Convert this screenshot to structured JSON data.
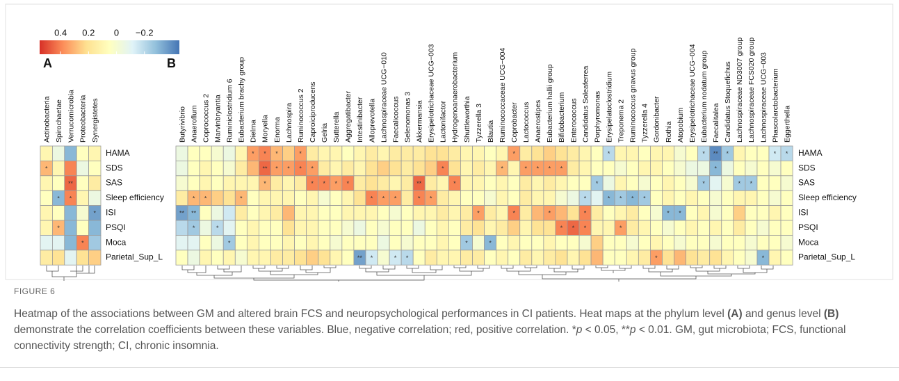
{
  "chart_data": [
    {
      "type": "heatmap",
      "columns": [
        "Actinobacteria",
        "Spirochaetae",
        "Verrucomicrobia",
        "Proteobacteria",
        "Synergistetes"
      ],
      "rows": [
        "HAMA",
        "SDS",
        "SAS",
        "Sleep efficiency",
        "ISI",
        "PSQI",
        "Moca",
        "Parietal_Sup_L"
      ],
      "values": [
        [
          0.1,
          -0.05,
          -0.3,
          0.05,
          0.1
        ],
        [
          0.3,
          0.1,
          0.4,
          -0.05,
          0.05
        ],
        [
          0.1,
          0.05,
          0.45,
          0.05,
          0.15
        ],
        [
          0.05,
          -0.3,
          0.4,
          0.1,
          -0.05
        ],
        [
          0.1,
          0.05,
          -0.3,
          0,
          -0.35
        ],
        [
          0.1,
          0.3,
          -0.3,
          0.05,
          -0.3
        ],
        [
          -0.1,
          -0.1,
          -0.3,
          0.4,
          -0.25
        ],
        [
          0.15,
          0.2,
          -0.1,
          0.2,
          0.25
        ]
      ],
      "stars": [
        [
          1,
          0,
          "*"
        ],
        [
          2,
          2,
          "**"
        ],
        [
          3,
          1,
          "*"
        ],
        [
          3,
          2,
          "*"
        ],
        [
          4,
          4,
          "*"
        ],
        [
          5,
          1,
          "*"
        ],
        [
          6,
          3,
          "*"
        ]
      ]
    },
    {
      "type": "heatmap",
      "columns": [
        "Butyrivibrio",
        "Anaeroflum",
        "Coprococcus 2",
        "Marvinbryantia",
        "Ruminiclostridium 6",
        "Eubacterium brachy group",
        "Dielma",
        "Moryella",
        "Enorma",
        "Lachnospira",
        "Ruminococcus 2",
        "Caproiciproducens",
        "Gelria",
        "Sutterella",
        "Aggregatibacter",
        "Intestinibacter",
        "Alloprevotella",
        "Lachnospiraceae UCG−010",
        "Faecalicoccus",
        "Selenomonas 3",
        "Akkermansia",
        "Erysipelotrichaceae UCG−003",
        "Lactonifactor",
        "Hydrogenoanaerobacterium",
        "Shuttleworthia",
        "Tyzzerella 3",
        "Blautia",
        "Ruminococcaceae UCG−004",
        "Coprobacter",
        "Lactococcus",
        "Anaerostipes",
        "Eubacterium hallii group",
        "Bifidobacterium",
        "Enterococcus",
        "Candidatus Soleaferrea",
        "Porphyromonas",
        "Erysipelatoclostridium",
        "Treponema 2",
        "Ruminococcus gnavus group",
        "Tyzzerella 4",
        "Gordonibacter",
        "Rothia",
        "Atopobium",
        "Erysipelotrichaceae UCG−004",
        "Eubacterium nodatum group",
        "Faecalitalea",
        "Candidatus Stoquefichus",
        "Lachnospiraceae ND3007 group",
        "Lachnospiraceae FCS020 group",
        "Lachnospiraceae UCG−003",
        "Phascolarctobacterium",
        "Eggerthella"
      ],
      "rows": [
        "HAMA",
        "SDS",
        "SAS",
        "Sleep efficiency",
        "ISI",
        "PSQI",
        "Moca",
        "Parietal_Sup_L"
      ],
      "values": [
        [
          -0.05,
          0.05,
          0.05,
          0,
          -0.05,
          0.1,
          0.35,
          0.4,
          0.3,
          0.25,
          0.35,
          0.15,
          0.1,
          0.1,
          0.05,
          0.1,
          0.15,
          0.1,
          0.15,
          0.15,
          0.15,
          0.2,
          0.2,
          0.15,
          0.1,
          0.1,
          0.05,
          0.1,
          0.35,
          0.15,
          0.2,
          0.25,
          0.2,
          0.15,
          0.1,
          0.05,
          -0.2,
          0.1,
          0.1,
          0.05,
          0.1,
          0.1,
          0,
          0.05,
          -0.2,
          -0.4,
          -0.25,
          0.1,
          0.05,
          0.05,
          -0.15,
          -0.2
        ],
        [
          -0.05,
          0.05,
          0.1,
          0.05,
          0,
          0.15,
          0.3,
          0.45,
          0.35,
          0.35,
          0.4,
          0.35,
          0.15,
          0.1,
          0.15,
          0.1,
          0.2,
          0.25,
          0.2,
          0.15,
          0.2,
          0.25,
          0.4,
          0.2,
          0.1,
          0.15,
          0.1,
          0.3,
          0.1,
          0.35,
          0.35,
          0.35,
          0.35,
          0.15,
          0.1,
          0.05,
          0.05,
          0,
          0.05,
          0.1,
          0.1,
          0.05,
          0,
          -0.05,
          -0.05,
          -0.3,
          -0.05,
          0.05,
          0,
          0.05,
          0,
          0.05
        ],
        [
          0,
          0.05,
          0.1,
          0.05,
          0.1,
          0.1,
          0.1,
          0.3,
          0.15,
          0.1,
          0.15,
          0.4,
          0.4,
          0.35,
          0.4,
          0.15,
          0.2,
          0.15,
          0.1,
          0.15,
          0.45,
          0.15,
          0.1,
          0.4,
          0.1,
          0.1,
          0.05,
          0.1,
          0.05,
          0.15,
          0.1,
          0.15,
          0.1,
          0.05,
          0.05,
          -0.25,
          -0.05,
          0.1,
          0.05,
          0,
          0.05,
          0.1,
          0.05,
          0,
          -0.25,
          -0.1,
          0,
          -0.25,
          -0.25,
          0.05,
          0.05,
          0
        ],
        [
          0.15,
          0.3,
          0.3,
          0.25,
          0.2,
          0.3,
          0.05,
          0.1,
          0.1,
          0.1,
          0.05,
          0.1,
          0,
          0.05,
          0.1,
          0.2,
          0.4,
          0.35,
          0.35,
          0.15,
          0.4,
          0.35,
          0.15,
          0.1,
          0.05,
          0.05,
          0,
          0.1,
          0.05,
          0.15,
          0.1,
          0.1,
          0,
          -0.05,
          -0.2,
          -0.1,
          -0.3,
          -0.25,
          -0.3,
          -0.25,
          0.05,
          0.1,
          0.05,
          0.1,
          0.05,
          0,
          0.05,
          0.1,
          0.1,
          0.05,
          0,
          0.05
        ],
        [
          -0.35,
          -0.3,
          0.05,
          -0.05,
          -0.15,
          0.15,
          0.05,
          0.1,
          0.15,
          0.3,
          0.1,
          0.1,
          0.05,
          0.05,
          0.1,
          0.1,
          0.1,
          0.05,
          0,
          0.05,
          0.1,
          0.1,
          0.15,
          0.1,
          0.15,
          0.35,
          0.15,
          0.1,
          0.4,
          0.15,
          0.3,
          0.35,
          0.3,
          0.2,
          0.4,
          0.15,
          0.05,
          0.1,
          0.15,
          0.05,
          0,
          -0.3,
          -0.3,
          0.05,
          0.1,
          0,
          0.05,
          0.25,
          0.05,
          0.05,
          0.1,
          0.05
        ],
        [
          -0.2,
          -0.25,
          -0.05,
          -0.2,
          -0.1,
          0.05,
          0.1,
          0.05,
          0.05,
          0.2,
          0.1,
          0.1,
          0.05,
          0.05,
          0,
          -0.05,
          0.05,
          0,
          0.05,
          0.05,
          -0.05,
          0.05,
          0.1,
          0.05,
          0.15,
          0.2,
          0.1,
          0.15,
          0.25,
          0.1,
          0.2,
          0.2,
          0.4,
          0.45,
          0.4,
          0.1,
          0.1,
          0.35,
          0.15,
          0.1,
          0.05,
          0,
          0.05,
          0.1,
          0.05,
          0.1,
          0.05,
          0.15,
          0.05,
          0,
          0.05,
          0.05
        ],
        [
          -0.1,
          -0.1,
          0.05,
          -0.05,
          -0.25,
          0.05,
          0.1,
          0.05,
          0.05,
          0.1,
          0.05,
          0.1,
          0.05,
          0,
          0.05,
          0.05,
          0.05,
          -0.05,
          0.05,
          0,
          0.05,
          0.05,
          0.1,
          0.05,
          -0.25,
          0,
          -0.3,
          0.05,
          0.1,
          0.05,
          0.05,
          0.1,
          0.05,
          0.05,
          0,
          0.25,
          0.05,
          0.05,
          0,
          0.05,
          0.1,
          0.05,
          0,
          0.05,
          0.05,
          0,
          0.05,
          0.05,
          0,
          0.05,
          0.05,
          0
        ],
        [
          0.05,
          -0.05,
          0.1,
          0.05,
          0.1,
          0,
          0.1,
          0.1,
          0.15,
          0.15,
          0.2,
          0.25,
          0.2,
          0.1,
          0.05,
          -0.35,
          -0.15,
          0,
          -0.15,
          -0.2,
          0.05,
          0.15,
          0.1,
          0.1,
          0.15,
          0.15,
          0.05,
          0.1,
          0.05,
          0.15,
          0.1,
          0.15,
          0.2,
          0.1,
          0.2,
          0.3,
          0.05,
          0.05,
          0.1,
          0.15,
          0.35,
          0.2,
          0.3,
          0.2,
          0.15,
          0.2,
          0.1,
          0.05,
          0,
          -0.3,
          0.1,
          0.05
        ]
      ],
      "stars": [
        [
          0,
          6,
          "*"
        ],
        [
          0,
          7,
          "*"
        ],
        [
          0,
          8,
          "*"
        ],
        [
          0,
          10,
          "*"
        ],
        [
          0,
          28,
          "*"
        ],
        [
          0,
          36,
          "*"
        ],
        [
          0,
          44,
          "*"
        ],
        [
          0,
          45,
          "**"
        ],
        [
          0,
          46,
          "*"
        ],
        [
          0,
          50,
          "*"
        ],
        [
          0,
          51,
          "*"
        ],
        [
          1,
          7,
          "**"
        ],
        [
          1,
          8,
          "*"
        ],
        [
          1,
          9,
          "*"
        ],
        [
          1,
          10,
          "*"
        ],
        [
          1,
          11,
          "*"
        ],
        [
          1,
          22,
          "*"
        ],
        [
          1,
          27,
          "*"
        ],
        [
          1,
          29,
          "*"
        ],
        [
          1,
          30,
          "*"
        ],
        [
          1,
          31,
          "*"
        ],
        [
          1,
          32,
          "*"
        ],
        [
          1,
          45,
          "*"
        ],
        [
          2,
          7,
          "*"
        ],
        [
          2,
          11,
          "*"
        ],
        [
          2,
          12,
          "*"
        ],
        [
          2,
          13,
          "*"
        ],
        [
          2,
          14,
          "*"
        ],
        [
          2,
          20,
          "**"
        ],
        [
          2,
          23,
          "*"
        ],
        [
          2,
          35,
          "*"
        ],
        [
          2,
          44,
          "*"
        ],
        [
          2,
          47,
          "*"
        ],
        [
          2,
          48,
          "*"
        ],
        [
          3,
          1,
          "*"
        ],
        [
          3,
          2,
          "*"
        ],
        [
          3,
          5,
          "*"
        ],
        [
          3,
          16,
          "*"
        ],
        [
          3,
          17,
          "*"
        ],
        [
          3,
          18,
          "*"
        ],
        [
          3,
          20,
          "*"
        ],
        [
          3,
          21,
          "*"
        ],
        [
          3,
          34,
          "*"
        ],
        [
          3,
          36,
          "*"
        ],
        [
          3,
          37,
          "*"
        ],
        [
          3,
          38,
          "*"
        ],
        [
          3,
          39,
          "*"
        ],
        [
          4,
          0,
          "**"
        ],
        [
          4,
          1,
          "**"
        ],
        [
          4,
          25,
          "*"
        ],
        [
          4,
          28,
          "*"
        ],
        [
          4,
          31,
          "*"
        ],
        [
          4,
          34,
          "*"
        ],
        [
          4,
          41,
          "*"
        ],
        [
          4,
          42,
          "*"
        ],
        [
          5,
          1,
          "*"
        ],
        [
          5,
          3,
          "*"
        ],
        [
          5,
          32,
          "*"
        ],
        [
          5,
          33,
          "*"
        ],
        [
          5,
          34,
          "*"
        ],
        [
          5,
          37,
          "*"
        ],
        [
          6,
          4,
          "*"
        ],
        [
          6,
          24,
          "*"
        ],
        [
          6,
          26,
          "*"
        ],
        [
          7,
          15,
          "**"
        ],
        [
          7,
          16,
          "*"
        ],
        [
          7,
          18,
          "*"
        ],
        [
          7,
          19,
          "*"
        ],
        [
          7,
          40,
          "*"
        ],
        [
          7,
          49,
          "*"
        ]
      ]
    }
  ],
  "colorbar": {
    "lim": [
      0.55,
      -0.45
    ],
    "ticks": [
      0.4,
      0.2,
      0,
      {
        "value": -0.2,
        "label": "−0.2"
      }
    ],
    "colors": [
      "#d73027",
      "#fc8d59",
      "#fee090",
      "#ffffbf",
      "#e0f3f8",
      "#91bfdb",
      "#4575b4"
    ]
  },
  "panel_labels": [
    "A",
    "B"
  ],
  "figure_label": "FIGURE 6",
  "caption": [
    "Heatmap of the associations between GM and altered brain FCS and neuropsychological performances in CI patients. Heat maps at the phylum level ",
    "(A)",
    " and genus level ",
    "(B)",
    " demonstrate the correlation coefficients between these variables. Blue, negative correlation; red, positive correlation. *",
    "p",
    " < 0.05, **",
    "p",
    " < 0.01. GM, gut microbiota; FCS, functional connectivity strength; CI, chronic insomnia."
  ]
}
